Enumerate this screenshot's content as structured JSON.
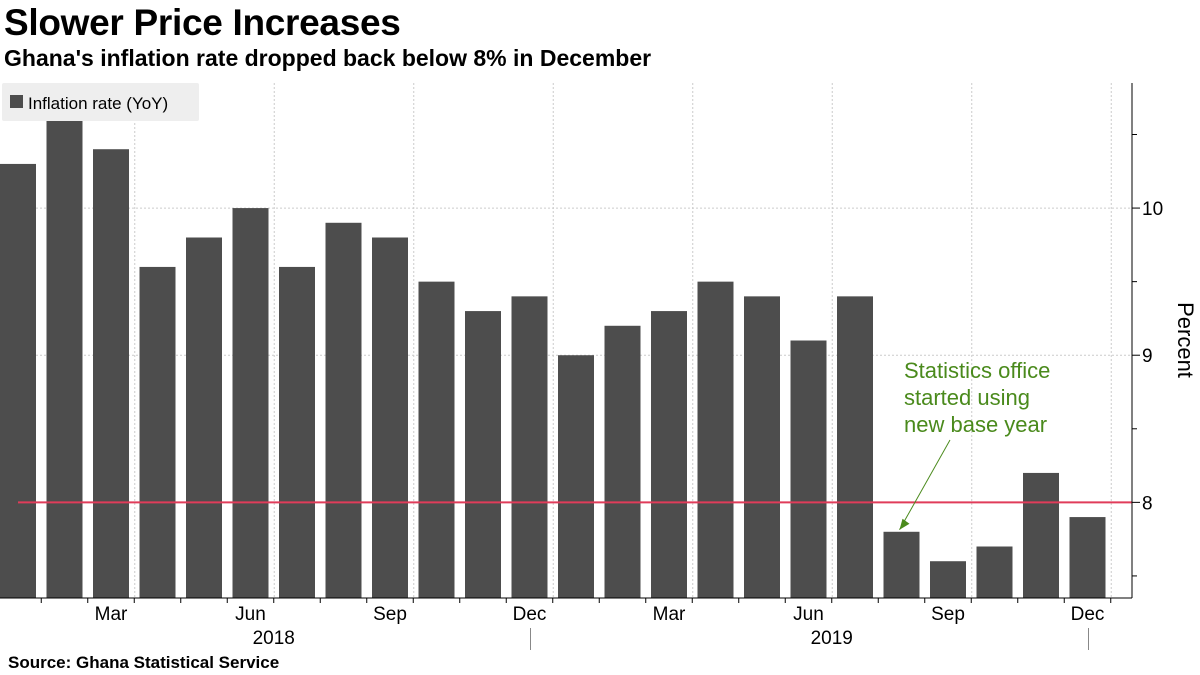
{
  "header": {
    "title": "Slower Price Increases",
    "subtitle": "Ghana's inflation rate dropped back below 8% in December"
  },
  "footer": {
    "source": "Source: Ghana Statistical Service"
  },
  "colors": {
    "bar": "#4d4d4d",
    "reference_line": "#e03c5a",
    "annotation": "#4a8a1c",
    "grid": "#cccccc",
    "legend_bg": "#eeeeee"
  },
  "chart_data": {
    "type": "bar",
    "categories": [
      "Jan 2018",
      "Feb 2018",
      "Mar 2018",
      "Apr 2018",
      "May 2018",
      "Jun 2018",
      "Jul 2018",
      "Aug 2018",
      "Sep 2018",
      "Oct 2018",
      "Nov 2018",
      "Dec 2018",
      "Jan 2019",
      "Feb 2019",
      "Mar 2019",
      "Apr 2019",
      "May 2019",
      "Jun 2019",
      "Jul 2019",
      "Aug 2019",
      "Sep 2019",
      "Oct 2019",
      "Nov 2019",
      "Dec 2019"
    ],
    "series": [
      {
        "name": "Inflation rate (YoY)",
        "values": [
          10.3,
          10.6,
          10.4,
          9.6,
          9.8,
          10.0,
          9.6,
          9.9,
          9.8,
          9.5,
          9.3,
          9.4,
          9.0,
          9.2,
          9.3,
          9.5,
          9.4,
          9.1,
          9.4,
          7.8,
          7.6,
          7.7,
          8.2,
          7.9
        ]
      }
    ],
    "ylabel": "Percent",
    "ylim": [
      7.35,
      10.85
    ],
    "yticks": [
      8,
      9,
      10
    ],
    "reference_line": 8,
    "x_tick_labels": [
      {
        "index": 2,
        "label": "Mar"
      },
      {
        "index": 5,
        "label": "Jun"
      },
      {
        "index": 8,
        "label": "Sep"
      },
      {
        "index": 11,
        "label": "Dec"
      },
      {
        "index": 14,
        "label": "Mar"
      },
      {
        "index": 17,
        "label": "Jun"
      },
      {
        "index": 20,
        "label": "Sep"
      },
      {
        "index": 23,
        "label": "Dec"
      }
    ],
    "year_labels": [
      {
        "label": "2018",
        "center_index": 5.5
      },
      {
        "label": "2019",
        "center_index": 17.5
      }
    ],
    "year_separators": [
      11,
      23
    ],
    "annotation": {
      "lines": [
        "Statistics office",
        "started using",
        "new base year"
      ],
      "target_index": 19
    },
    "grid": true,
    "legend": "top-left",
    "yaxis_side": "right"
  }
}
